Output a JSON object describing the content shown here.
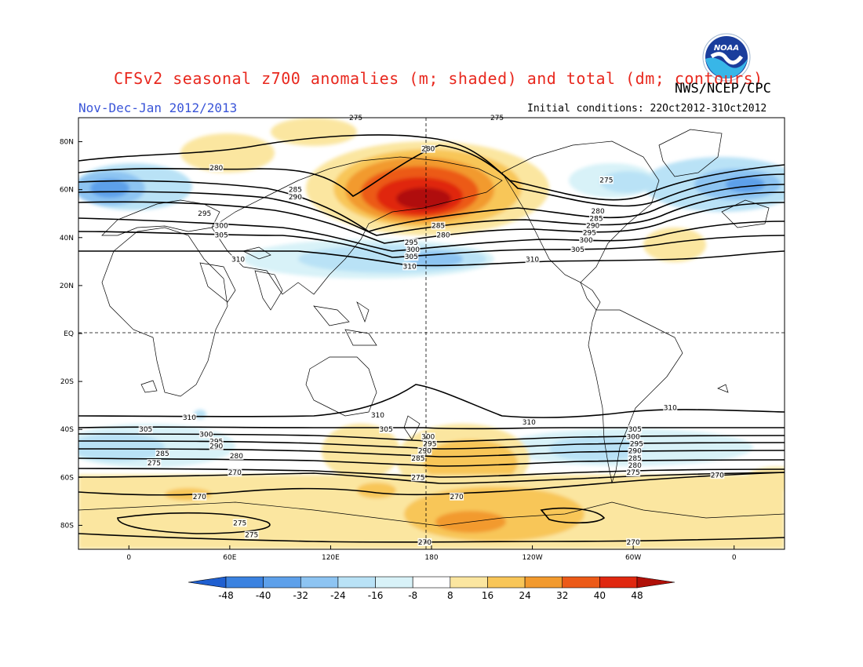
{
  "title": "CFSv2 seasonal z700 anomalies (m; shaded) and total (dm; contours)",
  "agency": "NWS/NCEP/CPC",
  "period": "Nov-Dec-Jan 2012/2013",
  "initial_conditions": "Initial conditions: 22Oct2012-31Oct2012",
  "logo_text": "NOAA",
  "lat_labels": [
    "80N",
    "60N",
    "40N",
    "20N",
    "EQ",
    "20S",
    "40S",
    "60S",
    "80S"
  ],
  "lon_labels": [
    "0",
    "60E",
    "120E",
    "180",
    "120W",
    "60W",
    "0"
  ],
  "colorbar": {
    "ticks": [
      "-48",
      "-40",
      "-32",
      "-24",
      "-16",
      "-8",
      "8",
      "16",
      "24",
      "32",
      "40",
      "48"
    ],
    "colors": [
      "#1f5fd0",
      "#3b82e0",
      "#5da0ea",
      "#8dc4f2",
      "#b9e2f6",
      "#d8f2f8",
      "#ffffff",
      "#fbe6a0",
      "#f8c658",
      "#f29a2e",
      "#ec5a18",
      "#e02810",
      "#b01008"
    ]
  },
  "contour_labels": [
    {
      "text": "280",
      "lon": 52,
      "lat": 69
    },
    {
      "text": "285",
      "lon": 99,
      "lat": 60
    },
    {
      "text": "290",
      "lon": 99,
      "lat": 57
    },
    {
      "text": "295",
      "lon": 45,
      "lat": 50
    },
    {
      "text": "300",
      "lon": 55,
      "lat": 45
    },
    {
      "text": "305",
      "lon": 55,
      "lat": 41
    },
    {
      "text": "310",
      "lon": 65,
      "lat": 31
    },
    {
      "text": "275",
      "lon": 135,
      "lat": 90
    },
    {
      "text": "275",
      "lon": 219,
      "lat": 90
    },
    {
      "text": "280",
      "lon": 178,
      "lat": 77
    },
    {
      "text": "285",
      "lon": 184,
      "lat": 45
    },
    {
      "text": "280",
      "lon": 187,
      "lat": 41
    },
    {
      "text": "295",
      "lon": 168,
      "lat": 38
    },
    {
      "text": "300",
      "lon": 169,
      "lat": 35
    },
    {
      "text": "305",
      "lon": 168,
      "lat": 32
    },
    {
      "text": "310",
      "lon": 167,
      "lat": 28
    },
    {
      "text": "275",
      "lon": 284,
      "lat": 64
    },
    {
      "text": "280",
      "lon": 279,
      "lat": 51
    },
    {
      "text": "285",
      "lon": 278,
      "lat": 48
    },
    {
      "text": "290",
      "lon": 276,
      "lat": 45
    },
    {
      "text": "295",
      "lon": 274,
      "lat": 42
    },
    {
      "text": "300",
      "lon": 272,
      "lat": 39
    },
    {
      "text": "305",
      "lon": 267,
      "lat": 35
    },
    {
      "text": "310",
      "lon": 240,
      "lat": 31
    },
    {
      "text": "310",
      "lon": 36,
      "lat": -35
    },
    {
      "text": "305",
      "lon": 10,
      "lat": -40
    },
    {
      "text": "300",
      "lon": 46,
      "lat": -42
    },
    {
      "text": "295",
      "lon": 52,
      "lat": -45
    },
    {
      "text": "290",
      "lon": 52,
      "lat": -47
    },
    {
      "text": "285",
      "lon": 20,
      "lat": -50
    },
    {
      "text": "280",
      "lon": 64,
      "lat": -51
    },
    {
      "text": "275",
      "lon": 15,
      "lat": -54
    },
    {
      "text": "270",
      "lon": 63,
      "lat": -58
    },
    {
      "text": "310",
      "lon": 148,
      "lat": -34
    },
    {
      "text": "305",
      "lon": 153,
      "lat": -40
    },
    {
      "text": "300",
      "lon": 178,
      "lat": -43
    },
    {
      "text": "295",
      "lon": 179,
      "lat": -46
    },
    {
      "text": "290",
      "lon": 176,
      "lat": -49
    },
    {
      "text": "285",
      "lon": 172,
      "lat": -52
    },
    {
      "text": "275",
      "lon": 172,
      "lat": -60
    },
    {
      "text": "310",
      "lon": 238,
      "lat": -37
    },
    {
      "text": "310",
      "lon": 322,
      "lat": -31
    },
    {
      "text": "305",
      "lon": 301,
      "lat": -40
    },
    {
      "text": "300",
      "lon": 300,
      "lat": -43
    },
    {
      "text": "295",
      "lon": 302,
      "lat": -46
    },
    {
      "text": "290",
      "lon": 301,
      "lat": -49
    },
    {
      "text": "285",
      "lon": 301,
      "lat": -52
    },
    {
      "text": "280",
      "lon": 301,
      "lat": -55
    },
    {
      "text": "275",
      "lon": 300,
      "lat": -58
    },
    {
      "text": "270",
      "lon": 350,
      "lat": -59
    },
    {
      "text": "270",
      "lon": 42,
      "lat": -68
    },
    {
      "text": "275",
      "lon": 66,
      "lat": -79
    },
    {
      "text": "275",
      "lon": 73,
      "lat": -84
    },
    {
      "text": "270",
      "lon": 195,
      "lat": -68
    },
    {
      "text": "270",
      "lon": 176,
      "lat": -87
    },
    {
      "text": "270",
      "lon": 300,
      "lat": -87
    }
  ]
}
